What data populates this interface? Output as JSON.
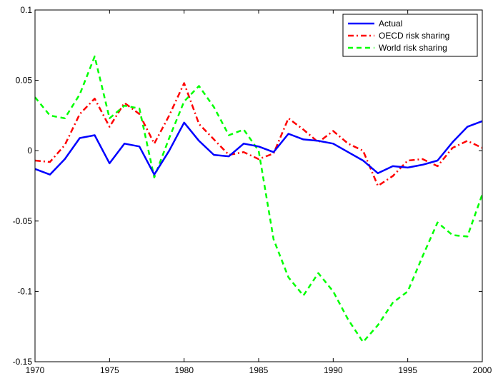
{
  "chart_data": {
    "type": "line",
    "title": "",
    "xlabel": "",
    "ylabel": "",
    "xlim": [
      1970,
      2000
    ],
    "ylim": [
      -0.15,
      0.1
    ],
    "xticks": [
      1970,
      1975,
      1980,
      1985,
      1990,
      1995,
      2000
    ],
    "yticks": [
      -0.15,
      -0.1,
      -0.05,
      0,
      0.05,
      0.1
    ],
    "ytick_labels": [
      "-0.15",
      "-0.1",
      "-0.05",
      "0",
      "0.05",
      "0.1"
    ],
    "grid": false,
    "legend_position": "top-right",
    "x": [
      1970,
      1971,
      1972,
      1973,
      1974,
      1975,
      1976,
      1977,
      1978,
      1979,
      1980,
      1981,
      1982,
      1983,
      1984,
      1985,
      1986,
      1987,
      1988,
      1989,
      1990,
      1991,
      1992,
      1993,
      1994,
      1995,
      1996,
      1997,
      1998,
      1999,
      2000
    ],
    "series": [
      {
        "name": "Actual",
        "color": "#0000ff",
        "style": "solid",
        "values": [
          -0.013,
          -0.017,
          -0.006,
          0.009,
          0.011,
          -0.009,
          0.005,
          0.003,
          -0.017,
          0.0,
          0.02,
          0.007,
          -0.003,
          -0.004,
          0.005,
          0.003,
          -0.001,
          0.012,
          0.008,
          0.007,
          0.005,
          -0.001,
          -0.007,
          -0.016,
          -0.011,
          -0.012,
          -0.01,
          -0.007,
          0.006,
          0.017,
          0.021
        ]
      },
      {
        "name": "OECD risk sharing",
        "color": "#ff0000",
        "style": "dashdot",
        "values": [
          -0.007,
          -0.008,
          0.004,
          0.026,
          0.037,
          0.017,
          0.034,
          0.026,
          0.005,
          0.025,
          0.048,
          0.019,
          0.008,
          -0.003,
          -0.001,
          -0.006,
          -0.002,
          0.023,
          0.015,
          0.006,
          0.014,
          0.005,
          0.0,
          -0.025,
          -0.018,
          -0.007,
          -0.006,
          -0.011,
          0.002,
          0.007,
          0.002
        ]
      },
      {
        "name": "World risk sharing",
        "color": "#00ff00",
        "style": "dashed",
        "values": [
          0.038,
          0.025,
          0.023,
          0.04,
          0.067,
          0.023,
          0.032,
          0.03,
          -0.019,
          0.009,
          0.035,
          0.046,
          0.031,
          0.011,
          0.015,
          0.0,
          -0.063,
          -0.09,
          -0.103,
          -0.087,
          -0.1,
          -0.12,
          -0.136,
          -0.124,
          -0.108,
          -0.1,
          -0.075,
          -0.051,
          -0.06,
          -0.061,
          -0.031
        ]
      }
    ]
  }
}
